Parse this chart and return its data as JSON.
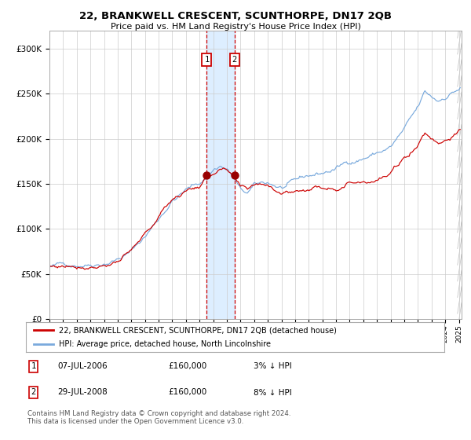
{
  "title": "22, BRANKWELL CRESCENT, SCUNTHORPE, DN17 2QB",
  "subtitle": "Price paid vs. HM Land Registry's House Price Index (HPI)",
  "legend_line1": "22, BRANKWELL CRESCENT, SCUNTHORPE, DN17 2QB (detached house)",
  "legend_line2": "HPI: Average price, detached house, North Lincolnshire",
  "transaction1_date": "07-JUL-2006",
  "transaction1_price": "£160,000",
  "transaction1_pct": "3% ↓ HPI",
  "transaction2_date": "29-JUL-2008",
  "transaction2_price": "£160,000",
  "transaction2_pct": "8% ↓ HPI",
  "footer": "Contains HM Land Registry data © Crown copyright and database right 2024.\nThis data is licensed under the Open Government Licence v3.0.",
  "hpi_color": "#7aaadd",
  "price_color": "#cc0000",
  "marker_color": "#990000",
  "shade_color": "#ddeeff",
  "vline_color": "#cc0000",
  "grid_color": "#cccccc",
  "background_color": "#ffffff",
  "box_color": "#cc0000",
  "ylim": [
    0,
    320000
  ],
  "yticks": [
    0,
    50000,
    100000,
    150000,
    200000,
    250000,
    300000
  ],
  "ytick_labels": [
    "£0",
    "£50K",
    "£100K",
    "£150K",
    "£200K",
    "£250K",
    "£300K"
  ],
  "transaction1_x": 2006.53,
  "transaction2_x": 2008.56,
  "xstart": 1995,
  "xend": 2025.2
}
